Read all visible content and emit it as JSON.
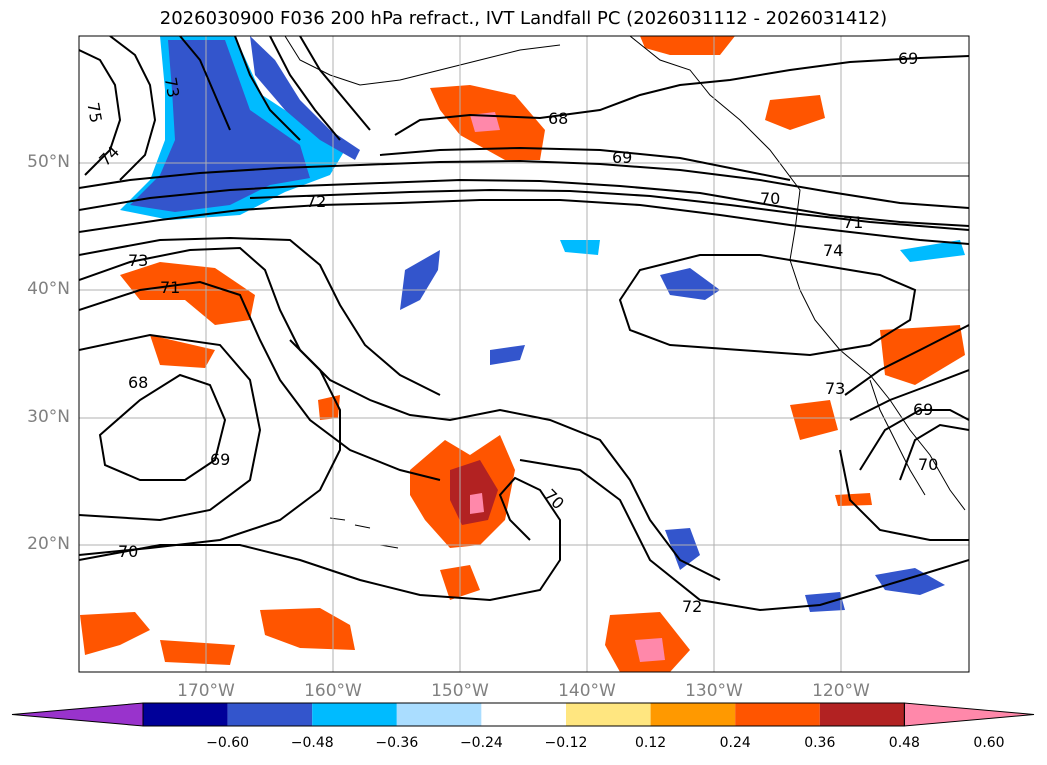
{
  "title": "2026030900 F036 200 hPa refract., IVT Landfall PC (2026031112 - 2026031412)",
  "lat_labels": [
    "50°N",
    "40°N",
    "30°N",
    "20°N"
  ],
  "lon_labels": [
    "170°W",
    "160°W",
    "150°W",
    "140°W",
    "130°W",
    "120°W"
  ],
  "contour_labels": [
    "75",
    "74",
    "73",
    "72",
    "73",
    "71",
    "68",
    "69",
    "70",
    "68",
    "69",
    "70",
    "71",
    "74",
    "69",
    "73",
    "69",
    "70",
    "72"
  ],
  "colorbar": {
    "ticks": [
      "−0.60",
      "−0.48",
      "−0.36",
      "−0.24",
      "−0.12",
      "0.12",
      "0.24",
      "0.36",
      "0.48",
      "0.60"
    ],
    "colors": [
      "#9933cc",
      "#000099",
      "#3355cc",
      "#00bbff",
      "#aaddff",
      "#ffffff",
      "#ffe680",
      "#ff9900",
      "#ff5500",
      "#b22222",
      "#ff88aa"
    ]
  },
  "map_style": {
    "background": "#ffffff",
    "contour_color": "#000000",
    "grid_color": "#b0b0b0"
  }
}
